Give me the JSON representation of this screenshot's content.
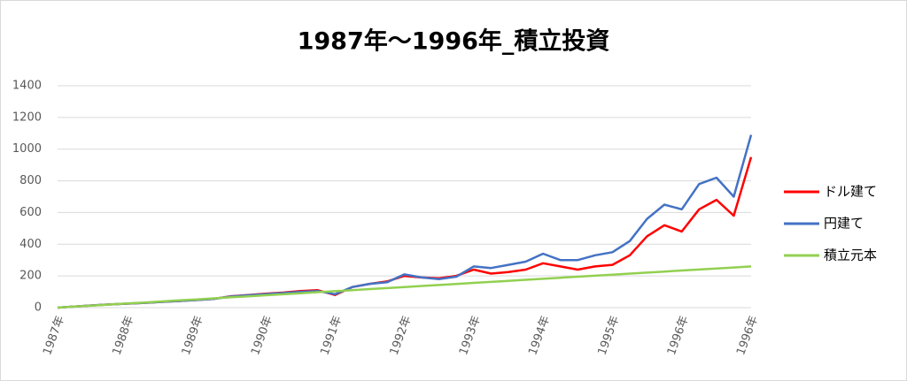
{
  "chart_data": {
    "type": "line",
    "title": "1987年～1996年_積立投資",
    "categories": [
      "1987年",
      null,
      null,
      null,
      "1988年",
      null,
      null,
      null,
      "1989年",
      null,
      null,
      null,
      "1990年",
      null,
      null,
      null,
      "1991年",
      null,
      null,
      null,
      "1992年",
      null,
      null,
      null,
      "1993年",
      null,
      null,
      null,
      "1994年",
      null,
      null,
      null,
      "1995年",
      null,
      null,
      null,
      "1996年",
      null,
      null,
      null,
      "1996年"
    ],
    "series": [
      {
        "name": "ドル建て",
        "color": "#ff0000",
        "values": [
          0,
          7,
          14,
          20,
          25,
          30,
          36,
          42,
          48,
          55,
          72,
          80,
          88,
          95,
          105,
          110,
          80,
          130,
          150,
          165,
          200,
          190,
          185,
          200,
          240,
          215,
          225,
          240,
          280,
          260,
          240,
          260,
          270,
          330,
          450,
          520,
          480,
          620,
          680,
          580,
          950
        ]
      },
      {
        "name": "円建て",
        "color": "#4472c4",
        "values": [
          0,
          7,
          14,
          20,
          25,
          30,
          36,
          42,
          48,
          55,
          70,
          78,
          85,
          92,
          100,
          105,
          85,
          130,
          150,
          160,
          210,
          190,
          180,
          195,
          260,
          250,
          270,
          290,
          340,
          300,
          300,
          330,
          350,
          420,
          560,
          650,
          620,
          780,
          820,
          700,
          1090
        ]
      },
      {
        "name": "積立元本",
        "color": "#92d050",
        "values": [
          0,
          6.5,
          13,
          19.5,
          26,
          32.5,
          39,
          45.5,
          52,
          58.5,
          65,
          71.5,
          78,
          84.5,
          91,
          97.5,
          104,
          110.5,
          117,
          123.5,
          130,
          136.5,
          143,
          149.5,
          156,
          162.5,
          169,
          175.5,
          182,
          188.5,
          195,
          201.5,
          208,
          214.5,
          221,
          227.5,
          234,
          240.5,
          247,
          253.5,
          260
        ]
      }
    ],
    "ylim": [
      0,
      1400
    ],
    "yticks": [
      0,
      200,
      400,
      600,
      800,
      1000,
      1200,
      1400
    ],
    "grid": true,
    "legend": "right"
  }
}
